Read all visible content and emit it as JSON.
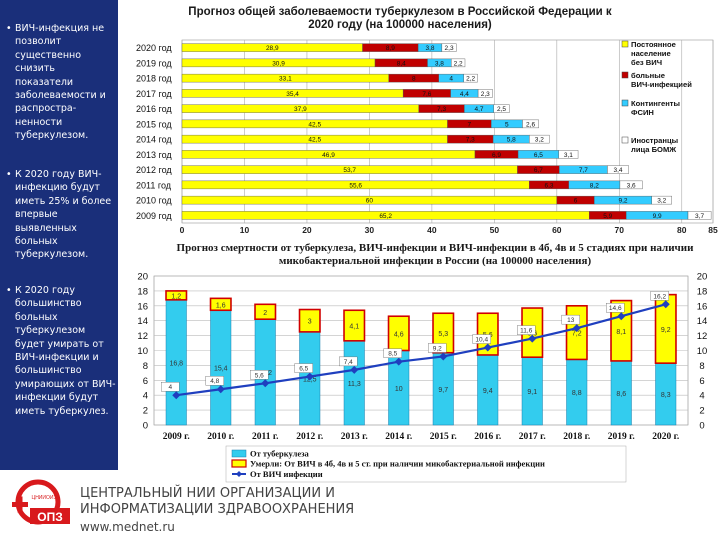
{
  "left_panel": {
    "bullets": [
      "ВИЧ-инфекция не позволит существенно снизить показатели заболеваемости и распростра-ненности туберкулезом.",
      "К 2020 году ВИЧ-инфекцию будут иметь 25% и более впервые выявленных больных туберкулезом.",
      "К 2020 году большинство больных туберкулезом будет умирать от ВИЧ-инфекции и большинство умирающих от ВИЧ-инфекции будут иметь туберкулез."
    ],
    "bullet_symbol": "•",
    "background": "#1a2f7a"
  },
  "chart_data": [
    {
      "type": "bar",
      "orientation": "horizontal",
      "stacked": true,
      "title": "Прогноз общей заболеваемости туберкулезом в Российской Федерации к 2020 году (на 100000 населения)",
      "categories": [
        "2020 год",
        "2019 год",
        "2018 год",
        "2017 год",
        "2016 год",
        "2015 год",
        "2014 год",
        "2013 год",
        "2012 год",
        "2011 год",
        "2010 год",
        "2009 год"
      ],
      "series": [
        {
          "name": "Постоянное население без ВИЧ",
          "color": "#ffff00",
          "values": [
            28.9,
            30.9,
            33.1,
            35.4,
            37.9,
            42.5,
            42.5,
            46.9,
            53.7,
            55.6,
            60.0,
            65.2
          ]
        },
        {
          "name": "больные ВИЧ-инфекцией",
          "color": "#c00000",
          "values": [
            8.9,
            8.4,
            8.0,
            7.6,
            7.3,
            7.0,
            7.3,
            6.9,
            6.7,
            6.3,
            6.0,
            5.9
          ]
        },
        {
          "name": "Контингенты ФСИН",
          "color": "#33ccff",
          "values": [
            3.8,
            3.8,
            4.0,
            4.4,
            4.7,
            5.0,
            5.8,
            6.5,
            7.7,
            8.2,
            9.2,
            9.9
          ]
        },
        {
          "name": "Иностранцы лица БОМЖ",
          "color": "#ffffff",
          "values": [
            2.3,
            2.2,
            2.2,
            2.3,
            2.5,
            2.6,
            3.2,
            3.1,
            3.4,
            3.6,
            3.2,
            3.7
          ]
        }
      ],
      "xlim": [
        0,
        85
      ],
      "xticks": [
        0,
        10,
        20,
        30,
        40,
        50,
        60,
        70,
        80,
        85
      ],
      "legend": "right"
    },
    {
      "type": "bar",
      "stacked": true,
      "title": "Прогноз смертности от туберкулеза, ВИЧ-инфекции и ВИЧ-инфекции в 4б, 4в и 5 стадиях при наличии микобактериальной инфекции в России (на 100000 населения)",
      "categories": [
        "2009 г.",
        "2010 г.",
        "2011 г.",
        "2012 г.",
        "2013 г.",
        "2014 г.",
        "2015 г.",
        "2016 г.",
        "2017 г.",
        "2018 г.",
        "2019 г.",
        "2020 г."
      ],
      "series": [
        {
          "name": "От туберкулеза",
          "color": "#33ccee",
          "values": [
            16.8,
            15.4,
            14.2,
            12.5,
            11.3,
            10.0,
            9.7,
            9.4,
            9.1,
            8.8,
            8.6,
            8.3
          ]
        },
        {
          "name": "Умерли: От ВИЧ в 4б, 4в и 5 ст. при наличии микобактериальной инфекции",
          "color": "#ffff00",
          "values": [
            1.2,
            1.6,
            2.0,
            3.0,
            4.1,
            4.6,
            5.3,
            5.6,
            6.6,
            7.2,
            8.1,
            9.2
          ]
        },
        {
          "name": "От ВИЧ инфекции",
          "color": "#1f3fbf",
          "type": "line",
          "values": [
            4.0,
            4.8,
            5.6,
            6.5,
            7.4,
            8.5,
            9.2,
            10.4,
            11.6,
            13.0,
            14.6,
            16.2
          ]
        }
      ],
      "ylim": [
        0,
        20
      ],
      "yticks": [
        0,
        2,
        4,
        6,
        8,
        10,
        12,
        14,
        16,
        18,
        20
      ],
      "legend": "bottom"
    }
  ],
  "footer": {
    "org_line1": "ЦЕНТРАЛЬНЫЙ НИИ ОРГАНИЗАЦИИ И",
    "org_line2": "ИНФОРМАТИЗАЦИИ ЗДРАВООХРАНЕНИЯ",
    "url": "www.mednet.ru",
    "logo_text": "ОПЗ",
    "logo_subtext": "ЦНИИОИЗ"
  }
}
